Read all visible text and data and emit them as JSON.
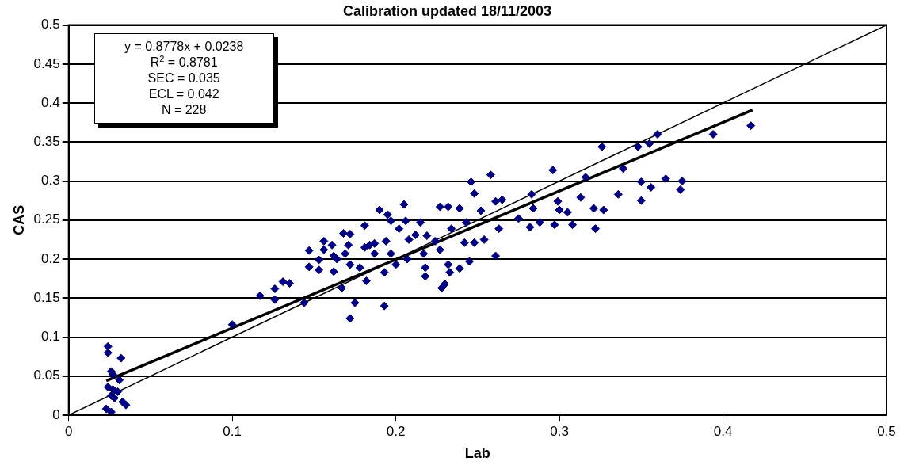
{
  "chart_data": {
    "type": "scatter",
    "title": "Calibration updated 18/11/2003",
    "xlabel": "Lab",
    "ylabel": "CAS",
    "xlim": [
      0,
      0.5
    ],
    "xticks": [
      0,
      0.1,
      0.2,
      0.3,
      0.4,
      0.5
    ],
    "ylim": [
      0,
      0.5
    ],
    "yticks": [
      0,
      0.05,
      0.1,
      0.15,
      0.2,
      0.25,
      0.3,
      0.35,
      0.4,
      0.45,
      0.5
    ],
    "grid": "y",
    "legend": false,
    "annotations": [
      "y = 0.8778x + 0.0238",
      "R$^{2}$ = 0.8781",
      "SEC  =  0.035",
      "ECL  =  0.042",
      "N   =   228"
    ],
    "series": [
      {
        "marker": "diamond",
        "color": "#000080",
        "x": [
          0.024,
          0.024,
          0.032,
          0.026,
          0.027,
          0.024,
          0.027,
          0.03,
          0.026,
          0.023,
          0.026,
          0.035,
          0.033,
          0.028,
          0.031,
          0.1,
          0.117,
          0.126,
          0.126,
          0.131,
          0.135,
          0.144,
          0.147,
          0.147,
          0.153,
          0.156,
          0.156,
          0.153,
          0.161,
          0.162,
          0.164,
          0.162,
          0.168,
          0.172,
          0.171,
          0.169,
          0.172,
          0.167,
          0.172,
          0.175,
          0.178,
          0.181,
          0.181,
          0.182,
          0.184,
          0.187,
          0.187,
          0.19,
          0.194,
          0.193,
          0.193,
          0.195,
          0.197,
          0.197,
          0.2,
          0.202,
          0.205,
          0.206,
          0.208,
          0.207,
          0.212,
          0.215,
          0.217,
          0.219,
          0.218,
          0.218,
          0.224,
          0.227,
          0.227,
          0.228,
          0.23,
          0.232,
          0.232,
          0.233,
          0.234,
          0.239,
          0.239,
          0.242,
          0.243,
          0.245,
          0.246,
          0.248,
          0.248,
          0.252,
          0.254,
          0.258,
          0.261,
          0.261,
          0.263,
          0.265,
          0.275,
          0.283,
          0.284,
          0.282,
          0.288,
          0.296,
          0.297,
          0.299,
          0.3,
          0.305,
          0.308,
          0.313,
          0.316,
          0.322,
          0.321,
          0.327,
          0.326,
          0.336,
          0.339,
          0.348,
          0.35,
          0.35,
          0.356,
          0.355,
          0.36,
          0.365,
          0.375,
          0.374,
          0.394,
          0.417
        ],
        "values": [
          0.088,
          0.08,
          0.073,
          0.056,
          0.052,
          0.036,
          0.033,
          0.03,
          0.025,
          0.008,
          0.004,
          0.013,
          0.017,
          0.022,
          0.045,
          0.116,
          0.153,
          0.162,
          0.148,
          0.171,
          0.169,
          0.144,
          0.211,
          0.19,
          0.199,
          0.223,
          0.212,
          0.186,
          0.218,
          0.204,
          0.2,
          0.184,
          0.233,
          0.232,
          0.218,
          0.207,
          0.193,
          0.163,
          0.124,
          0.144,
          0.189,
          0.243,
          0.215,
          0.172,
          0.218,
          0.207,
          0.22,
          0.263,
          0.223,
          0.14,
          0.183,
          0.257,
          0.249,
          0.207,
          0.193,
          0.239,
          0.27,
          0.249,
          0.225,
          0.2,
          0.231,
          0.247,
          0.207,
          0.23,
          0.189,
          0.178,
          0.223,
          0.212,
          0.267,
          0.163,
          0.168,
          0.267,
          0.193,
          0.183,
          0.239,
          0.265,
          0.188,
          0.221,
          0.247,
          0.197,
          0.299,
          0.284,
          0.221,
          0.262,
          0.225,
          0.308,
          0.274,
          0.204,
          0.239,
          0.276,
          0.252,
          0.283,
          0.265,
          0.241,
          0.247,
          0.314,
          0.244,
          0.274,
          0.263,
          0.26,
          0.244,
          0.279,
          0.305,
          0.239,
          0.265,
          0.263,
          0.344,
          0.283,
          0.316,
          0.344,
          0.299,
          0.275,
          0.292,
          0.348,
          0.36,
          0.303,
          0.3,
          0.289,
          0.36,
          0.371
        ]
      },
      {
        "type": "line",
        "color": "#000000",
        "x": [
          0,
          0.5
        ],
        "values": [
          0,
          0.5
        ]
      },
      {
        "type": "line",
        "color": "#000000",
        "x": [
          0.023,
          0.418
        ],
        "values": [
          0.044,
          0.391
        ]
      }
    ]
  }
}
